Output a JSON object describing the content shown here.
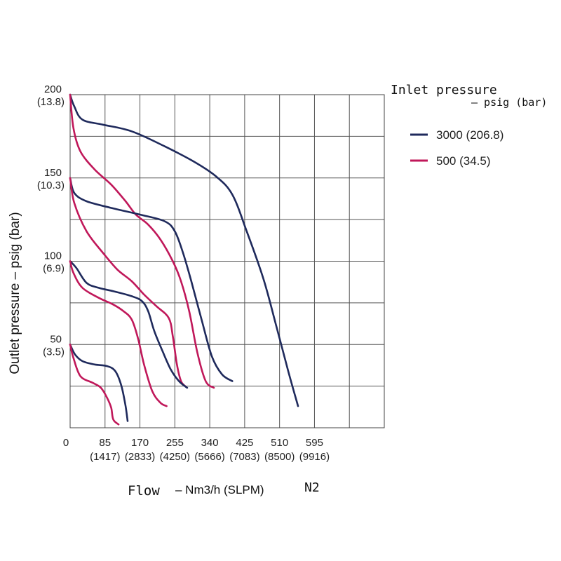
{
  "chart_data": {
    "type": "line",
    "title": "",
    "xlabel_main": "Flow",
    "xlabel_unit": "– Nm3/h (SLPM)",
    "xlabel_gas": "N2",
    "ylabel": "Outlet pressure – psig (bar)",
    "xlim": [
      0,
      765
    ],
    "ylim": [
      0,
      200
    ],
    "x_ticks": [
      {
        "value": 0,
        "label": "0",
        "sub": ""
      },
      {
        "value": 85,
        "label": "85",
        "sub": "(1417)"
      },
      {
        "value": 170,
        "label": "170",
        "sub": "(2833)"
      },
      {
        "value": 255,
        "label": "255",
        "sub": "(4250)"
      },
      {
        "value": 340,
        "label": "340",
        "sub": "(5666)"
      },
      {
        "value": 425,
        "label": "425",
        "sub": "(7083)"
      },
      {
        "value": 510,
        "label": "510",
        "sub": "(8500)"
      },
      {
        "value": 595,
        "label": "595",
        "sub": "(9916)"
      }
    ],
    "y_ticks": [
      {
        "value": 200,
        "label": "200",
        "sub": "(13.8)"
      },
      {
        "value": 150,
        "label": "150",
        "sub": "(10.3)"
      },
      {
        "value": 100,
        "label": "100",
        "sub": "(6.9)"
      },
      {
        "value": 50,
        "label": "50",
        "sub": "(3.5)"
      }
    ],
    "grid_x": [
      85,
      170,
      255,
      340,
      425,
      510,
      595,
      680,
      765
    ],
    "grid_y": [
      25,
      50,
      75,
      100,
      125,
      150,
      175,
      200
    ],
    "legend": {
      "title": "Inlet pressure",
      "subtitle": "– psig (bar)",
      "position": "right",
      "entries": [
        {
          "label": "3000 (206.8)",
          "color": "#1f2a5c"
        },
        {
          "label": "500 (34.5)",
          "color": "#c0185a"
        }
      ]
    },
    "series": [
      {
        "name": "3000 (206.8)",
        "setpoint": 200,
        "color": "#1f2a5c",
        "points": [
          [
            0,
            200
          ],
          [
            10,
            193
          ],
          [
            30,
            185
          ],
          [
            80,
            182
          ],
          [
            150,
            178
          ],
          [
            230,
            169
          ],
          [
            300,
            160
          ],
          [
            355,
            151
          ],
          [
            395,
            140
          ],
          [
            430,
            118
          ],
          [
            470,
            90
          ],
          [
            500,
            63
          ],
          [
            530,
            35
          ],
          [
            555,
            13
          ]
        ]
      },
      {
        "name": "500 (34.5)",
        "setpoint": 200,
        "color": "#c0185a",
        "points": [
          [
            0,
            200
          ],
          [
            8,
            180
          ],
          [
            25,
            166
          ],
          [
            60,
            155
          ],
          [
            100,
            146
          ],
          [
            135,
            136
          ],
          [
            160,
            128
          ],
          [
            190,
            122
          ],
          [
            220,
            113
          ],
          [
            250,
            100
          ],
          [
            270,
            88
          ],
          [
            290,
            70
          ],
          [
            310,
            45
          ],
          [
            330,
            28
          ],
          [
            350,
            24
          ]
        ]
      },
      {
        "name": "3000 (206.8)",
        "setpoint": 150,
        "color": "#1f2a5c",
        "points": [
          [
            0,
            150
          ],
          [
            10,
            141
          ],
          [
            40,
            136
          ],
          [
            100,
            132
          ],
          [
            170,
            128
          ],
          [
            230,
            124
          ],
          [
            255,
            118
          ],
          [
            275,
            105
          ],
          [
            295,
            88
          ],
          [
            320,
            65
          ],
          [
            345,
            43
          ],
          [
            370,
            32
          ],
          [
            395,
            28
          ]
        ]
      },
      {
        "name": "500 (34.5)",
        "setpoint": 150,
        "color": "#c0185a",
        "points": [
          [
            0,
            150
          ],
          [
            10,
            135
          ],
          [
            40,
            118
          ],
          [
            80,
            105
          ],
          [
            115,
            95
          ],
          [
            150,
            88
          ],
          [
            180,
            80
          ],
          [
            210,
            73
          ],
          [
            240,
            66
          ],
          [
            250,
            55
          ],
          [
            260,
            38
          ],
          [
            270,
            28
          ],
          [
            280,
            25
          ]
        ]
      },
      {
        "name": "3000 (206.8)",
        "setpoint": 100,
        "color": "#1f2a5c",
        "points": [
          [
            0,
            100
          ],
          [
            15,
            96
          ],
          [
            40,
            87
          ],
          [
            70,
            84
          ],
          [
            105,
            82
          ],
          [
            150,
            79
          ],
          [
            175,
            76
          ],
          [
            190,
            70
          ],
          [
            205,
            58
          ],
          [
            225,
            46
          ],
          [
            245,
            35
          ],
          [
            265,
            28
          ],
          [
            285,
            24
          ]
        ]
      },
      {
        "name": "500 (34.5)",
        "setpoint": 100,
        "color": "#c0185a",
        "points": [
          [
            0,
            100
          ],
          [
            8,
            93
          ],
          [
            30,
            84
          ],
          [
            70,
            78
          ],
          [
            105,
            74
          ],
          [
            130,
            70
          ],
          [
            150,
            65
          ],
          [
            165,
            54
          ],
          [
            180,
            38
          ],
          [
            200,
            22
          ],
          [
            220,
            15
          ],
          [
            235,
            13
          ]
        ]
      },
      {
        "name": "3000 (206.8)",
        "setpoint": 50,
        "color": "#1f2a5c",
        "points": [
          [
            0,
            50
          ],
          [
            12,
            44
          ],
          [
            30,
            40
          ],
          [
            60,
            38
          ],
          [
            90,
            37
          ],
          [
            110,
            34
          ],
          [
            125,
            25
          ],
          [
            135,
            13
          ],
          [
            140,
            4
          ]
        ]
      },
      {
        "name": "500 (34.5)",
        "setpoint": 50,
        "color": "#c0185a",
        "points": [
          [
            0,
            50
          ],
          [
            8,
            42
          ],
          [
            25,
            31
          ],
          [
            55,
            27
          ],
          [
            75,
            24
          ],
          [
            90,
            18
          ],
          [
            100,
            12
          ],
          [
            105,
            5
          ],
          [
            118,
            2
          ]
        ]
      }
    ]
  }
}
